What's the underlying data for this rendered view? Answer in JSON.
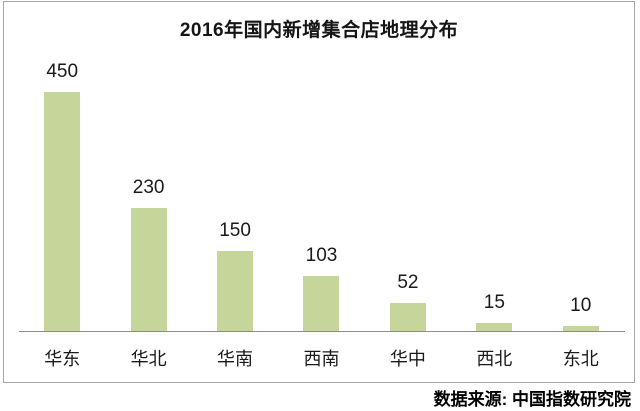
{
  "chart_data": {
    "type": "bar",
    "title": "2016年国内新增集合店地理分布",
    "categories": [
      "华东",
      "华北",
      "华南",
      "西南",
      "华中",
      "西北",
      "东北"
    ],
    "values": [
      450,
      230,
      150,
      103,
      52,
      15,
      10
    ],
    "ylim": [
      0,
      450
    ],
    "xlabel": "",
    "ylabel": "",
    "grid": false,
    "legend": false,
    "bar_color": "#c6d69b",
    "axis_color": "#8c8c8c"
  },
  "footer": {
    "source": "数据来源: 中国指数研究院"
  }
}
